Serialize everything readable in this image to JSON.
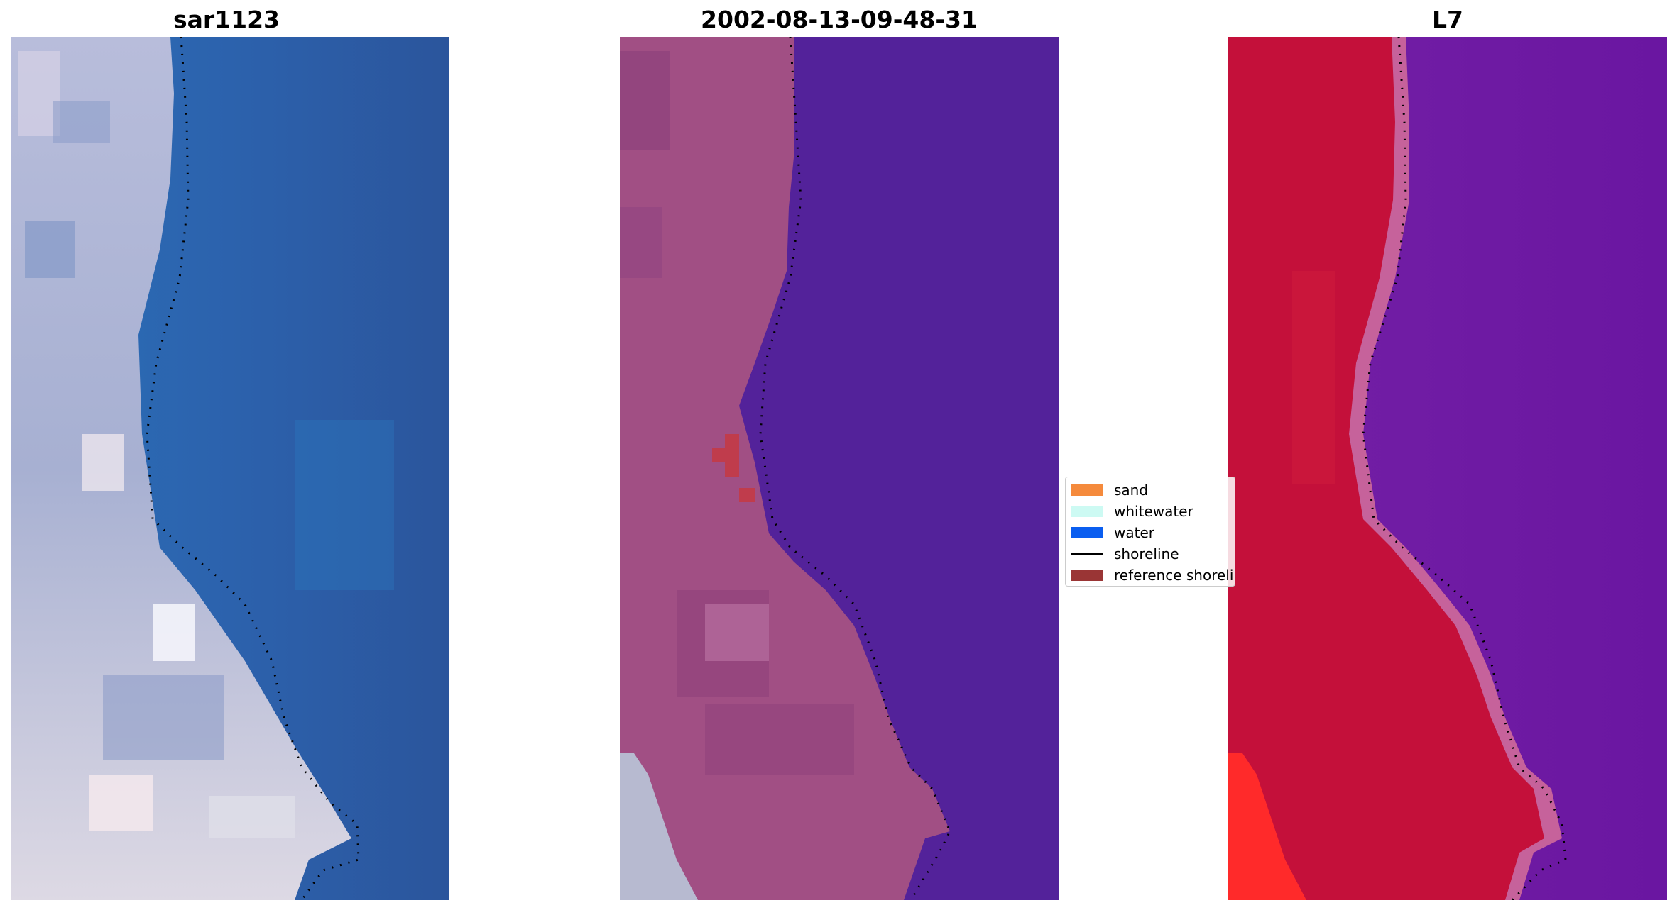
{
  "panels": [
    {
      "title": "sar1123"
    },
    {
      "title": "2002-08-13-09-48-31"
    },
    {
      "title": "L7"
    }
  ],
  "legend": {
    "items": [
      {
        "label": "sand",
        "color": "#f58a3c",
        "kind": "patch"
      },
      {
        "label": "whitewater",
        "color": "#cdfaf3",
        "kind": "patch"
      },
      {
        "label": "water",
        "color": "#0a5ef0",
        "kind": "patch"
      },
      {
        "label": "shoreline",
        "color": "#000000",
        "kind": "line"
      },
      {
        "label": "reference shoreline",
        "color": "#9a3535",
        "kind": "patch"
      }
    ]
  },
  "colors": {
    "ocean_rgb": "#2f5fa6",
    "land_rgb": "#c8cbe0",
    "classified_water": "#53229a",
    "classified_land": "#a14f84",
    "mndwi_land": "#c4103a",
    "mndwi_water": "#6a15a0"
  }
}
